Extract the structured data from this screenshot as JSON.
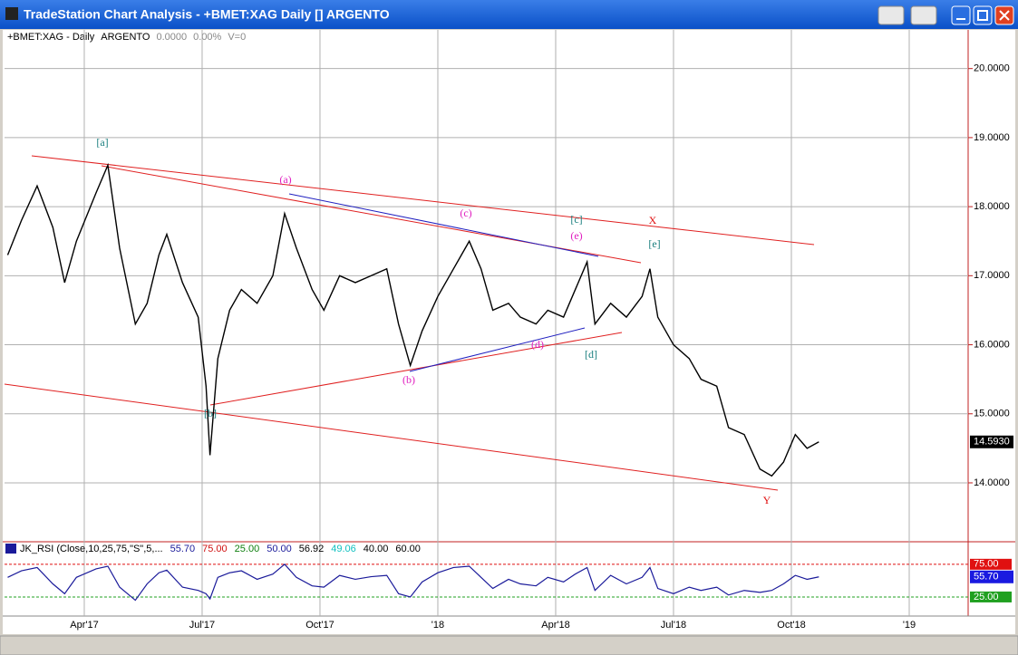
{
  "window": {
    "title": "TradeStation Chart Analysis - +BMET:XAG Daily [] ARGENTO"
  },
  "header": [
    "+BMET:XAG - Daily",
    "ARGENTO",
    "0.0000",
    "0.00%",
    "V=0"
  ],
  "chart_data": [
    {
      "type": "line",
      "x": [
        1.05,
        1.4,
        1.8,
        2.2,
        2.5,
        2.8,
        3.3,
        3.6,
        3.9,
        4.3,
        4.6,
        4.9,
        5.1,
        5.5,
        5.9,
        6.1,
        6.2,
        6.4,
        6.7,
        7.0,
        7.4,
        7.8,
        8.1,
        8.4,
        8.8,
        9.1,
        9.5,
        9.9,
        10.3,
        10.7,
        11.0,
        11.3,
        11.6,
        12.0,
        12.4,
        12.8,
        13.1,
        13.4,
        13.8,
        14.1,
        14.5,
        14.8,
        15.2,
        15.5,
        15.8,
        16.0,
        16.4,
        16.8,
        17.2,
        17.4,
        17.6,
        18.0,
        18.4,
        18.7,
        19.1,
        19.4,
        19.8,
        20.2,
        20.5,
        20.8,
        21.1,
        21.4,
        21.7
      ],
      "series": [
        {
          "color": "#000000",
          "values": [
            17.3,
            17.8,
            18.3,
            17.7,
            16.9,
            17.5,
            18.2,
            18.6,
            17.4,
            16.3,
            16.6,
            17.3,
            17.6,
            16.9,
            16.4,
            15.4,
            14.4,
            15.8,
            16.5,
            16.8,
            16.6,
            17.0,
            17.9,
            17.4,
            16.8,
            16.5,
            17.0,
            16.9,
            17.0,
            17.1,
            16.3,
            15.7,
            16.2,
            16.7,
            17.1,
            17.5,
            17.1,
            16.5,
            16.6,
            16.4,
            16.3,
            16.5,
            16.4,
            16.8,
            17.2,
            16.3,
            16.6,
            16.4,
            16.7,
            17.1,
            16.4,
            16.0,
            15.8,
            15.5,
            15.4,
            14.8,
            14.7,
            14.2,
            14.1,
            14.3,
            14.7,
            14.5,
            14.593
          ]
        }
      ],
      "last_value": {
        "value": 14.593,
        "label": "14.5930"
      },
      "xlim": [
        0.97,
        25.5
      ],
      "xticks": [
        {
          "value": 3,
          "label": "Apr'17"
        },
        {
          "value": 6,
          "label": "Jul'17"
        },
        {
          "value": 9,
          "label": "Oct'17"
        },
        {
          "value": 12,
          "label": "'18"
        },
        {
          "value": 15,
          "label": "Apr'18"
        },
        {
          "value": 18,
          "label": "Jul'18"
        },
        {
          "value": 21,
          "label": "Oct'18"
        },
        {
          "value": 24,
          "label": "'19"
        }
      ],
      "ylim": [
        13.16,
        20.56
      ],
      "yticks": [
        {
          "value": 14,
          "label": "14.0000"
        },
        {
          "value": 15,
          "label": "15.0000"
        },
        {
          "value": 16,
          "label": "16.0000"
        },
        {
          "value": 17,
          "label": "17.0000"
        },
        {
          "value": 18,
          "label": "18.0000"
        },
        {
          "value": 19,
          "label": "19.0000"
        },
        {
          "value": 20,
          "label": "20.0000"
        }
      ],
      "grid": true,
      "annotations": [
        {
          "text": "[a]",
          "color": "#1a7f7f"
        },
        {
          "text": "[b]",
          "color": "#1a7f7f"
        },
        {
          "text": "[c]",
          "color": "#1a7f7f"
        },
        {
          "text": "[d]",
          "color": "#1a7f7f"
        },
        {
          "text": "[e]",
          "color": "#1a7f7f"
        },
        {
          "text": "(a)",
          "color": "#e020c0"
        },
        {
          "text": "(b)",
          "color": "#e020c0"
        },
        {
          "text": "(c)",
          "color": "#e020c0"
        },
        {
          "text": "(d)",
          "color": "#e020c0"
        },
        {
          "text": "(e)",
          "color": "#e020c0"
        },
        {
          "text": "X",
          "color": "#e01010"
        },
        {
          "text": "Y",
          "color": "#e01010"
        }
      ]
    },
    {
      "type": "line",
      "title": [
        {
          "text": "JK_RSI (Close,10,25,75,\"S\",5,...",
          "color": "#000000"
        },
        {
          "text": "55.70",
          "color": "#1a1a9a"
        },
        {
          "text": "75.00",
          "color": "#d01010"
        },
        {
          "text": "25.00",
          "color": "#108010"
        },
        {
          "text": "50.00",
          "color": "#1a1a9a"
        },
        {
          "text": "56.92",
          "color": "#000000"
        },
        {
          "text": "49.06",
          "color": "#10c0c0"
        },
        {
          "text": "40.00",
          "color": "#000000"
        },
        {
          "text": "60.00",
          "color": "#000000"
        }
      ],
      "x": [
        1.05,
        1.4,
        1.8,
        2.2,
        2.5,
        2.8,
        3.3,
        3.6,
        3.9,
        4.3,
        4.6,
        4.9,
        5.1,
        5.5,
        5.9,
        6.1,
        6.2,
        6.4,
        6.7,
        7.0,
        7.4,
        7.8,
        8.1,
        8.4,
        8.8,
        9.1,
        9.5,
        9.9,
        10.3,
        10.7,
        11.0,
        11.3,
        11.6,
        12.0,
        12.4,
        12.8,
        13.1,
        13.4,
        13.8,
        14.1,
        14.5,
        14.8,
        15.2,
        15.5,
        15.8,
        16.0,
        16.4,
        16.8,
        17.2,
        17.4,
        17.6,
        18.0,
        18.4,
        18.7,
        19.1,
        19.4,
        19.8,
        20.2,
        20.5,
        20.8,
        21.1,
        21.4,
        21.7
      ],
      "series": [
        {
          "color": "#1a1a9a",
          "values": [
            55,
            65,
            70,
            45,
            30,
            55,
            68,
            72,
            40,
            20,
            45,
            62,
            66,
            40,
            35,
            30,
            22,
            55,
            62,
            65,
            52,
            60,
            75,
            55,
            42,
            40,
            58,
            52,
            56,
            58,
            30,
            25,
            48,
            62,
            70,
            72,
            55,
            38,
            52,
            45,
            42,
            55,
            48,
            60,
            70,
            35,
            58,
            45,
            55,
            70,
            38,
            30,
            40,
            35,
            40,
            28,
            35,
            32,
            35,
            45,
            58,
            52,
            55.7
          ]
        }
      ],
      "last_value": {
        "value": 55.7,
        "label": "55.70"
      },
      "xlim": [
        0.97,
        25.5
      ],
      "ylim": [
        0,
        90
      ],
      "yticks": [
        {
          "value": 25,
          "label": "25.00"
        },
        {
          "value": 75,
          "label": "75.00"
        }
      ]
    }
  ]
}
